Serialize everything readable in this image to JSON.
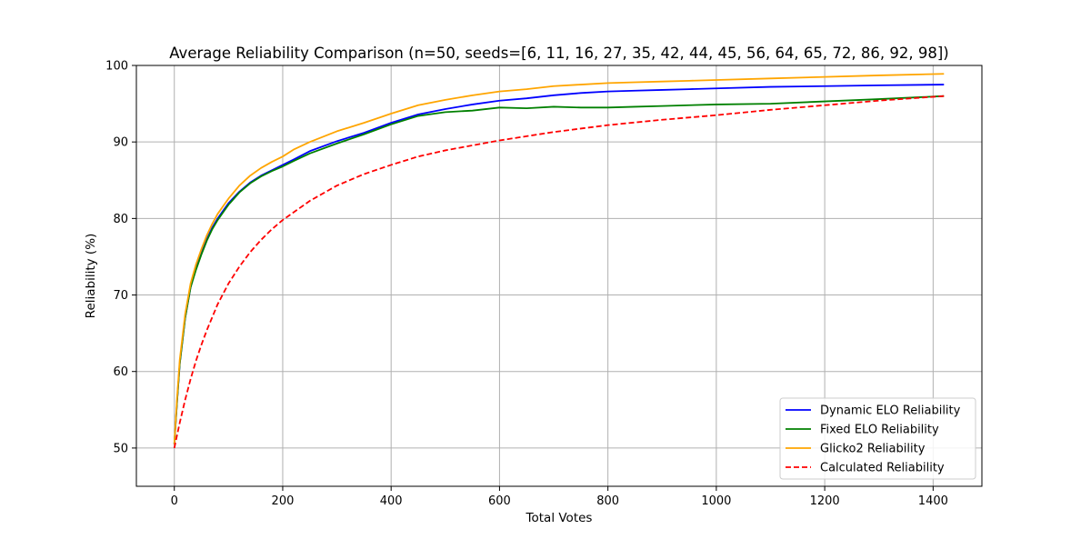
{
  "chart_data": {
    "type": "line",
    "title": "Average Reliability Comparison (n=50, seeds=[6, 11, 16, 27, 35, 42, 44, 45, 56, 64, 65, 72, 86, 92, 98])",
    "xlabel": "Total Votes",
    "ylabel": "Reliability (%)",
    "xlim": [
      -70,
      1490
    ],
    "ylim": [
      45,
      100
    ],
    "xticks": [
      0,
      200,
      400,
      600,
      800,
      1000,
      1200,
      1400
    ],
    "yticks": [
      50,
      60,
      70,
      80,
      90,
      100
    ],
    "grid": true,
    "legend_position": "lower-right",
    "series": [
      {
        "name": "Dynamic ELO Reliability",
        "color": "#0000ff",
        "style": "solid",
        "x": [
          0,
          5,
          10,
          20,
          30,
          40,
          50,
          60,
          70,
          80,
          90,
          100,
          120,
          140,
          160,
          180,
          200,
          220,
          250,
          300,
          350,
          400,
          450,
          500,
          550,
          600,
          650,
          700,
          750,
          800,
          850,
          900,
          950,
          1000,
          1100,
          1200,
          1300,
          1420
        ],
        "y": [
          50.5,
          56,
          61,
          67,
          71,
          73.5,
          75.5,
          77.3,
          78.8,
          80,
          81,
          82,
          83.5,
          84.7,
          85.6,
          86.3,
          87,
          87.7,
          88.8,
          90.1,
          91.2,
          92.5,
          93.6,
          94.3,
          94.9,
          95.4,
          95.7,
          96.1,
          96.4,
          96.6,
          96.7,
          96.8,
          96.9,
          97.0,
          97.2,
          97.3,
          97.4,
          97.5
        ]
      },
      {
        "name": "Fixed ELO Reliability",
        "color": "#008000",
        "style": "solid",
        "x": [
          0,
          5,
          10,
          20,
          30,
          40,
          50,
          60,
          70,
          80,
          90,
          100,
          120,
          140,
          160,
          180,
          200,
          220,
          250,
          300,
          350,
          400,
          450,
          500,
          550,
          600,
          650,
          700,
          750,
          800,
          850,
          900,
          950,
          1000,
          1100,
          1200,
          1300,
          1420
        ],
        "y": [
          50.5,
          56,
          61,
          67,
          71,
          73.3,
          75.3,
          77.1,
          78.6,
          79.8,
          80.8,
          81.8,
          83.4,
          84.6,
          85.5,
          86.2,
          86.8,
          87.5,
          88.5,
          89.8,
          91,
          92.3,
          93.4,
          93.9,
          94.1,
          94.5,
          94.4,
          94.6,
          94.5,
          94.5,
          94.6,
          94.7,
          94.8,
          94.9,
          95,
          95.3,
          95.6,
          96
        ]
      },
      {
        "name": "Glicko2 Reliability",
        "color": "#ffa500",
        "style": "solid",
        "x": [
          0,
          5,
          10,
          20,
          30,
          40,
          50,
          60,
          70,
          80,
          90,
          100,
          120,
          140,
          160,
          180,
          200,
          220,
          250,
          300,
          350,
          400,
          450,
          500,
          550,
          600,
          650,
          700,
          750,
          800,
          850,
          900,
          950,
          1000,
          1100,
          1200,
          1300,
          1420
        ],
        "y": [
          50.5,
          56.5,
          61.5,
          67.5,
          71.5,
          74,
          76,
          77.8,
          79.3,
          80.6,
          81.6,
          82.6,
          84.3,
          85.6,
          86.6,
          87.4,
          88.1,
          89,
          90,
          91.4,
          92.5,
          93.7,
          94.8,
          95.5,
          96.1,
          96.6,
          96.9,
          97.3,
          97.5,
          97.7,
          97.8,
          97.9,
          98.0,
          98.1,
          98.3,
          98.5,
          98.7,
          98.9
        ]
      },
      {
        "name": "Calculated Reliability",
        "color": "#ff0000",
        "style": "dashed",
        "x": [
          0,
          10,
          20,
          30,
          40,
          50,
          60,
          80,
          100,
          120,
          140,
          160,
          180,
          200,
          250,
          300,
          350,
          400,
          450,
          500,
          600,
          700,
          800,
          900,
          1000,
          1100,
          1200,
          1300,
          1420
        ],
        "y": [
          50,
          53.3,
          56.3,
          59,
          61.4,
          63.5,
          65.4,
          68.8,
          71.5,
          73.7,
          75.6,
          77.2,
          78.6,
          79.8,
          82.3,
          84.3,
          85.8,
          87,
          88.1,
          88.9,
          90.2,
          91.3,
          92.2,
          92.9,
          93.5,
          94.2,
          94.8,
          95.4,
          96.0
        ]
      }
    ]
  }
}
